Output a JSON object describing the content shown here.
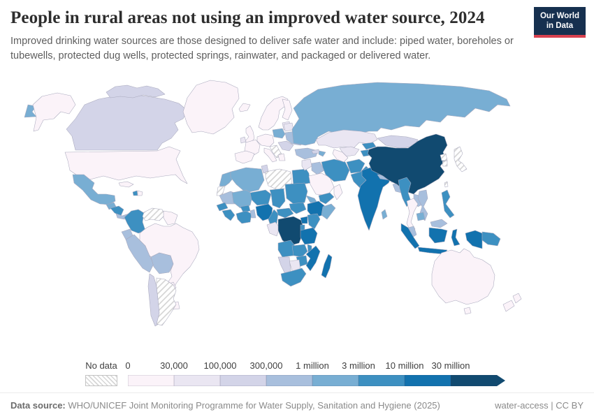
{
  "header": {
    "title": "People in rural areas not using an improved water source, 2024",
    "subtitle": "Improved drinking water sources are those designed to deliver safe water and include: piped water, boreholes or tubewells, protected dug wells, protected springs, rainwater, and packaged or delivered water.",
    "logo_line1": "Our World",
    "logo_line2": "in Data",
    "logo_bg": "#16304f",
    "logo_accent": "#d8414f"
  },
  "legend": {
    "no_data_label": "No data",
    "bin_edges": [
      "0",
      "30,000",
      "100,000",
      "300,000",
      "1 million",
      "3 million",
      "10 million",
      "30 million"
    ],
    "bin_colors": [
      "#fbf3f9",
      "#eae6f2",
      "#d3d4e8",
      "#a8bfdd",
      "#78aed3",
      "#3d90c1",
      "#1272ae",
      "#114a70"
    ]
  },
  "footer": {
    "source_label": "Data source:",
    "source_text": " WHO/UNICEF Joint Monitoring Programme for Water Supply, Sanitation and Hygiene (2025)",
    "license_text": "water-access | CC BY"
  },
  "chart_data": {
    "type": "choropleth-world-map",
    "title": "People in rural areas not using an improved water source, 2024",
    "unit": "people",
    "bin_edges": [
      "0",
      "30,000",
      "100,000",
      "300,000",
      "1 million",
      "3 million",
      "10 million",
      "30 million"
    ],
    "no_data_style": "hatched",
    "countries": {
      "united-states": 0,
      "greenland": 0,
      "iceland": 0,
      "united-kingdom": 0,
      "norway": 0,
      "sweden": 0,
      "finland": 0,
      "france": 0,
      "spain": 0,
      "portugal": 0,
      "germany": 0,
      "italy": 0,
      "greece": 0,
      "cuba": 0,
      "dominican-republic": 0,
      "guyana": 0,
      "suriname": 0,
      "brazil": 0,
      "paraguay": 0,
      "uruguay": 0,
      "saudi-arabia": 0,
      "oman": 0,
      "turkmenistan": 0,
      "thailand": 0,
      "australia": 0,
      "new-zealand": 0,
      "hungary": 0,
      "ireland": 1,
      "belarus": 1,
      "baltics": 1,
      "syria": 1,
      "kazakhstan": 1,
      "uzbekistan": 1,
      "gabon": 1,
      "botswana": 1,
      "canada": 2,
      "chile": 2,
      "mongolia": 2,
      "romania": 2,
      "bulgaria": 2,
      "tunisia": 2,
      "georgia": 2,
      "armenia": 2,
      "namibia": 2,
      "republic-of-congo": 2,
      "peru": 3,
      "bolivia": 3,
      "ecuador": 3,
      "panama": 3,
      "ukraine": 3,
      "turkey": 3,
      "iraq": 3,
      "mauritania": 3,
      "nepal": 3,
      "bhutan": 3,
      "bangladesh": 3,
      "laos": 3,
      "vietnam": 3,
      "malaysia": 3,
      "benin": 3,
      "mexico": 4,
      "guatemala": 4,
      "russia": 4,
      "poland": 4,
      "morocco": 4,
      "algeria": 4,
      "mali": 4,
      "sri-lanka": 4,
      "cambodia": 4,
      "azerbaijan": 4,
      "somalia": 4,
      "eritrea": 4,
      "colombia": 5,
      "honduras": 5,
      "nicaragua": 5,
      "haiti": 5,
      "egypt": 5,
      "senegal": 5,
      "guinea": 5,
      "sierra-leone": 5,
      "liberia": 5,
      "cote-divoire": 5,
      "ghana": 5,
      "burkina-faso": 5,
      "niger": 5,
      "chad": 5,
      "sudan": 5,
      "south-sudan": 5,
      "cameroon": 5,
      "central-african-republic": 5,
      "kenya": 5,
      "rwanda": 5,
      "burundi": 5,
      "angola": 5,
      "zambia": 5,
      "malawi": 5,
      "zimbabwe": 5,
      "south-africa": 5,
      "yemen": 5,
      "iran": 5,
      "afghanistan": 5,
      "pakistan": 5,
      "kyrgyzstan": 5,
      "tajikistan": 5,
      "myanmar": 5,
      "philippines": 5,
      "papua-new-guinea": 5,
      "nigeria": 6,
      "ethiopia": 6,
      "uganda": 6,
      "tanzania": 6,
      "mozambique": 6,
      "madagascar": 6,
      "india": 6,
      "indonesia": 6,
      "china": 7,
      "democratic-republic-of-congo": 7,
      "venezuela": "no-data",
      "argentina": "no-data",
      "libya": "no-data",
      "western-sahara": "no-data",
      "serbia": "no-data",
      "north-korea": "no-data",
      "south-korea": "no-data",
      "japan": "no-data",
      "taiwan": "no-data"
    }
  }
}
